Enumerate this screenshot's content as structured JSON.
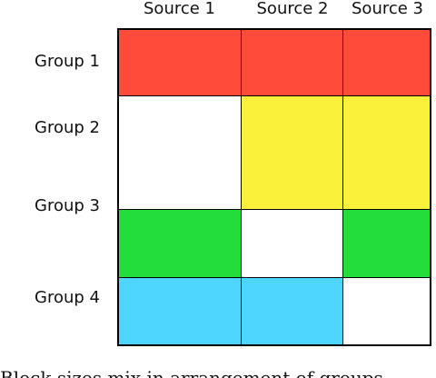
{
  "columns": [
    "Source 1",
    "Source 2",
    "Source 3"
  ],
  "rows": [
    "Group 1",
    "Group 2",
    "Group 3",
    "Group 4"
  ],
  "colors": {
    "red": "#ff4b3a",
    "yellow": "#f9f03a",
    "green": "#22dd3a",
    "blue": "#4dd4ff",
    "white": "#ffffff"
  },
  "cells": [
    [
      "red",
      "red",
      "red"
    ],
    [
      "white",
      "yellow",
      "yellow"
    ],
    [
      "green",
      "white",
      "green"
    ],
    [
      "blue",
      "blue",
      "white"
    ]
  ],
  "caption": "Block sizes mix in arrangement of groups"
}
